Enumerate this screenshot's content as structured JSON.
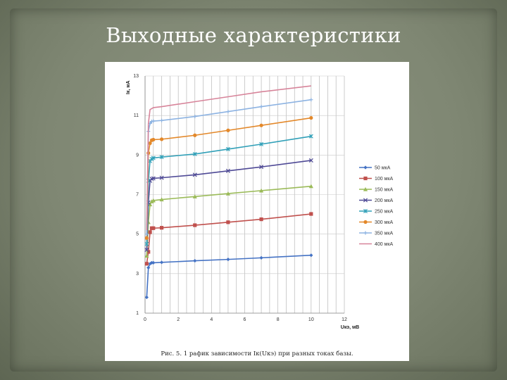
{
  "slide": {
    "title": "Выходные характеристики"
  },
  "chart_data": {
    "type": "line",
    "title": "",
    "xlabel": "Uкэ, мВ",
    "ylabel": "Iк, мА",
    "xlim": [
      0,
      12
    ],
    "ylim": [
      1,
      13
    ],
    "x_ticks": [
      0,
      2,
      4,
      6,
      8,
      10,
      12
    ],
    "y_ticks": [
      1,
      3,
      5,
      7,
      9,
      11,
      13
    ],
    "grid": true,
    "legend_position": "right",
    "caption": "Рис. 5. 1 рафик зависимости Iк(Uкэ) при разных токах базы.",
    "series": [
      {
        "name": "50 мкА",
        "color": "#4472c4",
        "marker": "diamond",
        "x": [
          0.1,
          0.2,
          0.3,
          0.4,
          0.5,
          1,
          3,
          5,
          7,
          10
        ],
        "y": [
          1.8,
          3.3,
          3.5,
          3.55,
          3.55,
          3.57,
          3.65,
          3.72,
          3.8,
          3.93
        ]
      },
      {
        "name": "100 мкА",
        "color": "#c0504d",
        "marker": "square",
        "x": [
          0.1,
          0.2,
          0.3,
          0.4,
          0.5,
          1,
          3,
          5,
          7,
          10
        ],
        "y": [
          3.5,
          4.1,
          5.1,
          5.3,
          5.3,
          5.32,
          5.45,
          5.6,
          5.75,
          6.02
        ]
      },
      {
        "name": "150 мкА",
        "color": "#9bbb59",
        "marker": "triangle",
        "x": [
          0.1,
          0.2,
          0.3,
          0.4,
          0.5,
          1,
          3,
          5,
          7,
          10
        ],
        "y": [
          3.9,
          5.6,
          6.5,
          6.65,
          6.7,
          6.75,
          6.9,
          7.05,
          7.2,
          7.42
        ]
      },
      {
        "name": "200 мкА",
        "color": "#4f4a96",
        "marker": "x",
        "x": [
          0.1,
          0.2,
          0.3,
          0.4,
          0.5,
          1,
          3,
          5,
          7,
          10
        ],
        "y": [
          4.2,
          6.6,
          7.7,
          7.8,
          7.82,
          7.85,
          8.0,
          8.2,
          8.4,
          8.73
        ]
      },
      {
        "name": "250 мкА",
        "color": "#31a0b8",
        "marker": "star",
        "x": [
          0.1,
          0.2,
          0.3,
          0.4,
          0.5,
          1,
          3,
          5,
          7,
          10
        ],
        "y": [
          4.5,
          7.7,
          8.7,
          8.8,
          8.85,
          8.9,
          9.05,
          9.3,
          9.55,
          9.95
        ]
      },
      {
        "name": "300 мкА",
        "color": "#e3882a",
        "marker": "circle",
        "x": [
          0.1,
          0.2,
          0.3,
          0.4,
          0.5,
          1,
          3,
          5,
          7,
          10
        ],
        "y": [
          4.8,
          9.1,
          9.6,
          9.75,
          9.78,
          9.8,
          10.0,
          10.25,
          10.5,
          10.88
        ]
      },
      {
        "name": "350 мкА",
        "color": "#8db3e2",
        "marker": "plus",
        "x": [
          0.1,
          0.2,
          0.3,
          0.4,
          0.5,
          1,
          3,
          5,
          7,
          10
        ],
        "y": [
          5.0,
          10.2,
          10.6,
          10.7,
          10.72,
          10.75,
          10.95,
          11.2,
          11.45,
          11.8
        ]
      },
      {
        "name": "400 мкА",
        "color": "#d7849a",
        "marker": "none",
        "x": [
          0.1,
          0.2,
          0.3,
          0.4,
          0.5,
          1,
          3,
          5,
          7,
          10
        ],
        "y": [
          5.2,
          10.6,
          11.3,
          11.35,
          11.4,
          11.45,
          11.7,
          11.95,
          12.2,
          12.5
        ]
      }
    ]
  }
}
